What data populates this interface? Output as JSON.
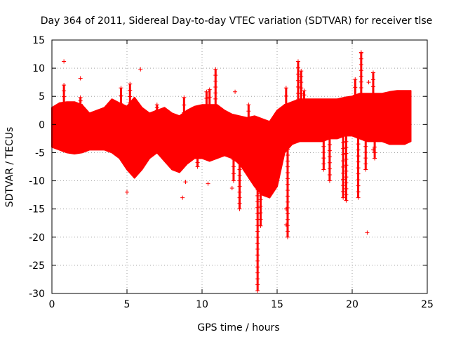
{
  "chart_data": {
    "type": "scatter",
    "title": "Day 364 of 2011, Sidereal Day-to-day VTEC variation (SDTVAR) for receiver tlse",
    "xlabel": "GPS time / hours",
    "ylabel": "SDTVAR / TECUs",
    "xlim": [
      0,
      25
    ],
    "ylim": [
      -30,
      15
    ],
    "x_ticks": [
      0,
      5,
      10,
      15,
      20,
      25
    ],
    "y_ticks": [
      15,
      10,
      5,
      0,
      -5,
      -10,
      -15,
      -20,
      -25,
      -30
    ],
    "grid": true,
    "marker": "+",
    "series_color": "#ff0000",
    "envelope": {
      "x": [
        0,
        0.5,
        1,
        1.5,
        2,
        2.5,
        3,
        3.5,
        4,
        4.5,
        5,
        5.5,
        6,
        6.5,
        7,
        7.5,
        8,
        8.5,
        9,
        9.5,
        10,
        10.5,
        11,
        11.5,
        12,
        12.5,
        13,
        13.5,
        14,
        14.5,
        15,
        15.5,
        16,
        16.5,
        17,
        17.5,
        18,
        18.5,
        19,
        19.5,
        20,
        20.5,
        21,
        21.5,
        22,
        22.5,
        23,
        23.5,
        23.9
      ],
      "upper": [
        3,
        3.8,
        4,
        4,
        3.5,
        2,
        2.5,
        3,
        4.5,
        3.8,
        3.2,
        4.8,
        3,
        2,
        2.5,
        3,
        2,
        1.5,
        2.5,
        3.2,
        3.5,
        3.5,
        3.5,
        2.5,
        1.8,
        1.5,
        1.2,
        1.5,
        1,
        0.5,
        2.5,
        3.5,
        4,
        4.5,
        4.5,
        4.5,
        4.5,
        4.5,
        4.5,
        4.8,
        5,
        5.5,
        5.5,
        5.5,
        5.5,
        5.8,
        6,
        6,
        6
      ],
      "lower": [
        -4,
        -4.5,
        -5,
        -5.2,
        -5,
        -4.5,
        -4.5,
        -4.5,
        -5,
        -6,
        -8,
        -9.5,
        -8,
        -6,
        -5,
        -6.5,
        -8,
        -8.5,
        -7,
        -6,
        -6,
        -6.5,
        -6,
        -5.5,
        -6,
        -7,
        -9,
        -11,
        -12.5,
        -13,
        -11,
        -5,
        -3.5,
        -3,
        -3,
        -3,
        -3,
        -2.5,
        -2.5,
        -2,
        -2,
        -2.5,
        -3,
        -3,
        -3,
        -3.5,
        -3.5,
        -3.5,
        -3
      ]
    },
    "spikes": [
      {
        "x": 0.8,
        "y": 7
      },
      {
        "x": 1.9,
        "y": 4.8
      },
      {
        "x": 4.6,
        "y": 6.5
      },
      {
        "x": 5.2,
        "y": 7.2
      },
      {
        "x": 7.0,
        "y": 3.5
      },
      {
        "x": 8.8,
        "y": 4.8
      },
      {
        "x": 9.7,
        "y": -7.5
      },
      {
        "x": 10.3,
        "y": 5.8
      },
      {
        "x": 10.5,
        "y": 6.2
      },
      {
        "x": 10.9,
        "y": 9.8
      },
      {
        "x": 12.1,
        "y": -10
      },
      {
        "x": 12.5,
        "y": -15
      },
      {
        "x": 13.1,
        "y": 3.5
      },
      {
        "x": 13.7,
        "y": -29.5
      },
      {
        "x": 13.9,
        "y": -18
      },
      {
        "x": 15.6,
        "y": 6.5
      },
      {
        "x": 15.7,
        "y": -20
      },
      {
        "x": 16.4,
        "y": 11.2
      },
      {
        "x": 16.6,
        "y": 9.5
      },
      {
        "x": 16.8,
        "y": 6
      },
      {
        "x": 18.1,
        "y": -8
      },
      {
        "x": 18.5,
        "y": -10
      },
      {
        "x": 19.4,
        "y": -13
      },
      {
        "x": 19.6,
        "y": -13.5
      },
      {
        "x": 20.2,
        "y": 8
      },
      {
        "x": 20.4,
        "y": -13
      },
      {
        "x": 20.6,
        "y": 12.7
      },
      {
        "x": 20.9,
        "y": -8
      },
      {
        "x": 21.4,
        "y": 9.2
      },
      {
        "x": 21.5,
        "y": -6
      }
    ],
    "outliers": [
      {
        "x": 0.8,
        "y": 11.2
      },
      {
        "x": 1.9,
        "y": 8.2
      },
      {
        "x": 5.0,
        "y": -12
      },
      {
        "x": 5.9,
        "y": 9.8
      },
      {
        "x": 8.7,
        "y": -13
      },
      {
        "x": 8.9,
        "y": -10.2
      },
      {
        "x": 10.4,
        "y": -10.5
      },
      {
        "x": 12.0,
        "y": -11.3
      },
      {
        "x": 12.2,
        "y": 5.8
      },
      {
        "x": 15.6,
        "y": -15
      },
      {
        "x": 15.6,
        "y": -17.8
      },
      {
        "x": 20.6,
        "y": 12.8
      },
      {
        "x": 21.0,
        "y": -19.2
      },
      {
        "x": 21.1,
        "y": 7.5
      },
      {
        "x": 21.4,
        "y": -4.5
      },
      {
        "x": 22.5,
        "y": -2.5
      },
      {
        "x": 14.8,
        "y": -11.2
      }
    ]
  }
}
